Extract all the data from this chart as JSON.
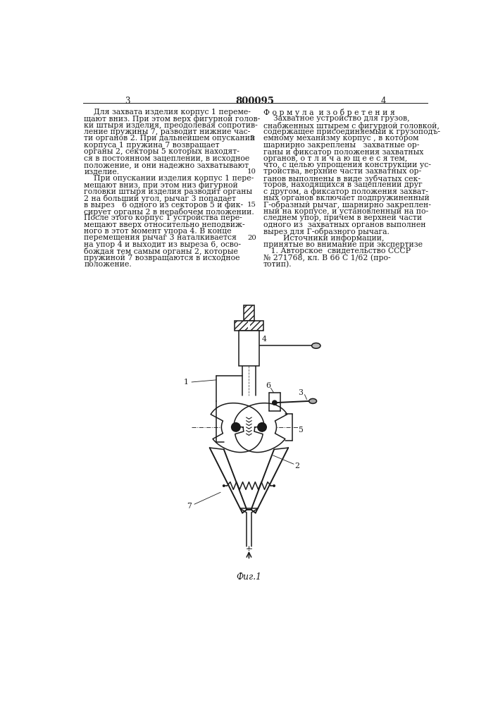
{
  "page_number_left": "3",
  "patent_number": "800095",
  "page_number_right": "4",
  "left_column_text": [
    "    Для захвата изделия корпус 1 переме-",
    "щают вниз. При этом верх фигурной голов-",
    "ки штыря изделия, преодолевая сопротив-",
    "ление пружины 7, разводит нижние час-",
    "ти органов 2. При дальнейшем опускании",
    "корпуса 1 пружина 7 возвращает",
    "органы 2, секторы 5 которых находят-",
    "ся в постоянном зацеплении, в исходное",
    "положение, и они надежно захватывают",
    "изделие.",
    "    При опускании изделия корпус 1 пере-",
    "мещают вниз, при этом низ фигурной",
    "головки штыря изделия разводит органы",
    "2 на больший угол, рычаг 3 попадает",
    "в вырез   6 одного из секторов 5 и фик-",
    "сирует органы 2 в нерабочем положении.",
    "После этого корпус 1 устройства пере-",
    "мещают вверх относительно неподвиж-",
    "ного в этот момент упора 4. В конце",
    "перемещения рычаг 3 наталкивается",
    "на упор 4 и выходит из выреза 6, осво-",
    "бождая тем самым органы 2, которые",
    "пружиной 7 возвращаются в исходное",
    "положение."
  ],
  "right_column_title": "Ф о р м у л а  и з о б р е т е н и я",
  "right_column_text": [
    "    Захватное устройство для грузов,",
    "снабженных штырем с фигурной головкой,",
    "содержащее присоединяемый к грузоподъ-",
    "емному механизму корпус , в котором",
    "шарнирно закреплены   захватные ор-",
    "ганы и фиксатор положения захватных",
    "органов, о т л и ч а ю щ е е с я тем,",
    "что, с целью упрощения конструкции ус-",
    "тройства, верхние части захватных ор-",
    "ганов выполнены в виде зубчатых сек-",
    "торов, находящихся в зацеплении друг",
    "с другом, а фиксатор положения захват-",
    "ных органов включает подпружиненный",
    "Г-образный рычаг, шарнирно закреплен-",
    "ный на корпусе, и установленный на по-",
    "следнем упор, причем в верхней части",
    "одного из  захватных органов выполнен",
    "вырез для Г-образного рычага.",
    "        Источники информации,",
    "принятые во внимание при экспертизе",
    "   1. Авторское  свидетельство СССР",
    "№ 271768, кл. В 66 С 1/62 (про-",
    "тотип)."
  ],
  "line_numbers": [
    "5",
    "10",
    "15",
    "20"
  ],
  "line_number_rows": [
    4,
    9,
    14,
    19
  ],
  "figure_caption": "Фиг.1",
  "background_color": "#ffffff",
  "text_color": "#1a1a1a",
  "line_color": "#1a1a1a"
}
